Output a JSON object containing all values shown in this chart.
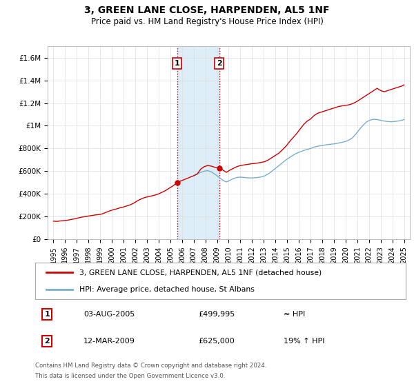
{
  "title": "3, GREEN LANE CLOSE, HARPENDEN, AL5 1NF",
  "subtitle": "Price paid vs. HM Land Registry's House Price Index (HPI)",
  "footnote1": "Contains HM Land Registry data © Crown copyright and database right 2024.",
  "footnote2": "This data is licensed under the Open Government Licence v3.0.",
  "legend_line1": "3, GREEN LANE CLOSE, HARPENDEN, AL5 1NF (detached house)",
  "legend_line2": "HPI: Average price, detached house, St Albans",
  "table_row1": [
    "1",
    "03-AUG-2005",
    "£499,995",
    "≈ HPI"
  ],
  "table_row2": [
    "2",
    "12-MAR-2009",
    "£625,000",
    "19% ↑ HPI"
  ],
  "transaction1_year": 2005.58,
  "transaction2_year": 2009.19,
  "transaction1_price": 499995,
  "transaction2_price": 625000,
  "red_color": "#cc0000",
  "blue_color": "#7aadcc",
  "shade_color": "#ddeef8",
  "background_color": "#ffffff",
  "grid_color": "#dddddd",
  "ylim": [
    0,
    1700000
  ],
  "xlim": [
    1994.5,
    2025.5
  ],
  "ytick_vals": [
    0,
    200000,
    400000,
    600000,
    800000,
    1000000,
    1200000,
    1400000,
    1600000
  ],
  "ytick_labels": [
    "£0",
    "£200K",
    "£400K",
    "£600K",
    "£800K",
    "£1M",
    "£1.2M",
    "£1.4M",
    "£1.6M"
  ],
  "xtick_vals": [
    1995,
    1996,
    1997,
    1998,
    1999,
    2000,
    2001,
    2002,
    2003,
    2004,
    2005,
    2006,
    2007,
    2008,
    2009,
    2010,
    2011,
    2012,
    2013,
    2014,
    2015,
    2016,
    2017,
    2018,
    2019,
    2020,
    2021,
    2022,
    2023,
    2024,
    2025
  ],
  "red_x": [
    1995.0,
    1995.3,
    1995.6,
    1995.9,
    1996.2,
    1996.5,
    1996.8,
    1997.1,
    1997.4,
    1997.7,
    1998.0,
    1998.3,
    1998.6,
    1998.9,
    1999.2,
    1999.5,
    1999.8,
    2000.1,
    2000.4,
    2000.7,
    2001.0,
    2001.3,
    2001.6,
    2001.9,
    2002.2,
    2002.5,
    2002.8,
    2003.1,
    2003.4,
    2003.7,
    2004.0,
    2004.3,
    2004.6,
    2004.9,
    2005.2,
    2005.58,
    2005.8,
    2006.1,
    2006.4,
    2006.7,
    2007.0,
    2007.3,
    2007.6,
    2007.9,
    2008.2,
    2008.5,
    2008.8,
    2009.19,
    2009.5,
    2009.8,
    2010.1,
    2010.4,
    2010.7,
    2011.0,
    2011.3,
    2011.6,
    2011.9,
    2012.2,
    2012.5,
    2012.8,
    2013.1,
    2013.4,
    2013.7,
    2014.0,
    2014.3,
    2014.6,
    2014.9,
    2015.2,
    2015.5,
    2015.8,
    2016.1,
    2016.4,
    2016.7,
    2017.0,
    2017.3,
    2017.6,
    2017.9,
    2018.2,
    2018.5,
    2018.8,
    2019.1,
    2019.4,
    2019.7,
    2020.0,
    2020.3,
    2020.6,
    2020.9,
    2021.2,
    2021.5,
    2021.8,
    2022.1,
    2022.4,
    2022.7,
    2023.0,
    2023.3,
    2023.6,
    2023.9,
    2024.2,
    2024.5,
    2024.8,
    2025.0
  ],
  "red_y": [
    160000,
    158000,
    162000,
    165000,
    168000,
    175000,
    180000,
    188000,
    195000,
    200000,
    205000,
    210000,
    215000,
    218000,
    225000,
    238000,
    250000,
    260000,
    268000,
    278000,
    285000,
    295000,
    305000,
    320000,
    340000,
    355000,
    368000,
    375000,
    382000,
    390000,
    400000,
    415000,
    430000,
    450000,
    468000,
    499995,
    510000,
    522000,
    535000,
    548000,
    560000,
    575000,
    618000,
    640000,
    650000,
    645000,
    635000,
    625000,
    610000,
    590000,
    610000,
    625000,
    640000,
    650000,
    655000,
    660000,
    665000,
    668000,
    672000,
    678000,
    685000,
    700000,
    720000,
    740000,
    760000,
    790000,
    820000,
    860000,
    895000,
    930000,
    970000,
    1010000,
    1040000,
    1060000,
    1090000,
    1110000,
    1120000,
    1130000,
    1140000,
    1150000,
    1160000,
    1170000,
    1175000,
    1180000,
    1185000,
    1195000,
    1210000,
    1230000,
    1250000,
    1270000,
    1290000,
    1310000,
    1330000,
    1310000,
    1300000,
    1310000,
    1320000,
    1330000,
    1340000,
    1350000,
    1360000
  ],
  "blue_x": [
    2007.0,
    2007.3,
    2007.6,
    2007.9,
    2008.2,
    2008.5,
    2008.8,
    2009.19,
    2009.5,
    2009.8,
    2010.1,
    2010.4,
    2010.7,
    2011.0,
    2011.3,
    2011.6,
    2011.9,
    2012.2,
    2012.5,
    2012.8,
    2013.1,
    2013.4,
    2013.7,
    2014.0,
    2014.3,
    2014.6,
    2014.9,
    2015.2,
    2015.5,
    2015.8,
    2016.1,
    2016.4,
    2016.7,
    2017.0,
    2017.3,
    2017.6,
    2017.9,
    2018.2,
    2018.5,
    2018.8,
    2019.1,
    2019.4,
    2019.7,
    2020.0,
    2020.3,
    2020.6,
    2020.9,
    2021.2,
    2021.5,
    2021.8,
    2022.1,
    2022.4,
    2022.7,
    2023.0,
    2023.3,
    2023.6,
    2023.9,
    2024.2,
    2024.5,
    2024.8,
    2025.0
  ],
  "blue_y": [
    560000,
    575000,
    590000,
    600000,
    605000,
    595000,
    575000,
    545000,
    520000,
    505000,
    520000,
    535000,
    545000,
    548000,
    545000,
    542000,
    540000,
    542000,
    545000,
    550000,
    560000,
    578000,
    600000,
    625000,
    650000,
    675000,
    700000,
    720000,
    740000,
    758000,
    770000,
    782000,
    792000,
    800000,
    812000,
    820000,
    825000,
    830000,
    835000,
    838000,
    842000,
    848000,
    855000,
    862000,
    875000,
    895000,
    930000,
    970000,
    1005000,
    1035000,
    1050000,
    1058000,
    1055000,
    1048000,
    1042000,
    1038000,
    1035000,
    1038000,
    1042000,
    1048000,
    1055000
  ]
}
